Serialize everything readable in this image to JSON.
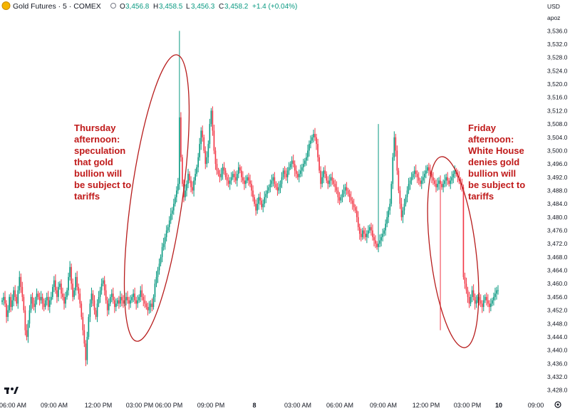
{
  "header": {
    "symbol": "Gold Futures · 5 · COMEX",
    "open_label": "O",
    "open": "3,456.8",
    "high_label": "H",
    "high": "3,458.5",
    "low_label": "L",
    "low": "3,456.3",
    "close_label": "C",
    "close": "3,458.2",
    "change": "+1.4 (+0.04%)"
  },
  "axis": {
    "currency": "USD",
    "unit": "apoz",
    "brand_icon": "tradingview-logo-icon",
    "settings_icon": "gear-icon"
  },
  "annotations": [
    {
      "lines": [
        "Thursday",
        "afternoon:",
        "",
        "speculation",
        "that gold",
        "bullion will",
        "be subject to",
        "tariffs"
      ]
    },
    {
      "lines": [
        "Friday",
        "afternoon:",
        "",
        "White House",
        "denies gold",
        "bullion will",
        "be subject to",
        "tariffs"
      ]
    }
  ],
  "colors": {
    "up": "#089981",
    "down": "#f23645",
    "ellipse": "#b71c1c",
    "text": "#c01a1a",
    "grid": "#f0f3fa"
  },
  "chart_data": {
    "type": "candlestick",
    "title": "Gold Futures · 5 · COMEX",
    "ylim": [
      3426,
      3538
    ],
    "y_ticks": [
      3428,
      3432,
      3436,
      3440,
      3444,
      3448,
      3452,
      3456,
      3460,
      3464,
      3468,
      3472,
      3476,
      3480,
      3484,
      3488,
      3492,
      3496,
      3500,
      3504,
      3508,
      3512,
      3516,
      3520,
      3524,
      3528,
      3532,
      3536
    ],
    "y_tick_labels": [
      "3,428.0",
      "3,432.0",
      "3,436.0",
      "3,440.0",
      "3,444.0",
      "3,448.0",
      "3,452.0",
      "3,456.0",
      "3,460.0",
      "3,464.0",
      "3,468.0",
      "3,472.0",
      "3,476.0",
      "3,480.0",
      "3,484.0",
      "3,488.0",
      "3,492.0",
      "3,496.0",
      "3,500.0",
      "3,504.0",
      "3,508.0",
      "3,512.0",
      "3,516.0",
      "3,520.0",
      "3,524.0",
      "3,528.0",
      "3,532.0",
      "3,536.0"
    ],
    "x_labels": [
      "06:00 AM",
      "09:00 AM",
      "12:00 PM",
      "03:00 PM",
      "06:00 PM",
      "09:00 PM",
      "8",
      "03:00 AM",
      "06:00 AM",
      "09:00 AM",
      "12:00 PM",
      "03:00 PM",
      "10",
      "09:00"
    ],
    "grid": false,
    "series": [
      {
        "values": [
          3455,
          3456,
          3454,
          3450,
          3452,
          3456,
          3453,
          3455,
          3458,
          3456,
          3454,
          3458,
          3462,
          3459,
          3456,
          3452,
          3446,
          3444,
          3448,
          3452,
          3456,
          3454,
          3453,
          3455,
          3457,
          3456,
          3455,
          3456,
          3454,
          3453,
          3455,
          3456,
          3453,
          3455,
          3456,
          3459,
          3461,
          3458,
          3456,
          3459,
          3460,
          3457,
          3456,
          3454,
          3456,
          3458,
          3462,
          3465,
          3460,
          3456,
          3458,
          3462,
          3459,
          3457,
          3454,
          3450,
          3446,
          3442,
          3437,
          3444,
          3450,
          3454,
          3457,
          3455,
          3452,
          3450,
          3454,
          3456,
          3458,
          3460,
          3461,
          3458,
          3455,
          3452,
          3454,
          3456,
          3457,
          3455,
          3453,
          3454,
          3455,
          3454,
          3456,
          3455,
          3454,
          3455,
          3456,
          3455,
          3454,
          3455,
          3456,
          3457,
          3455,
          3454,
          3455,
          3456,
          3458,
          3456,
          3455,
          3454,
          3453,
          3452,
          3453,
          3454,
          3453,
          3456,
          3460,
          3462,
          3464,
          3466,
          3468,
          3471,
          3472,
          3474,
          3476,
          3477,
          3479,
          3481,
          3482,
          3484,
          3486,
          3488,
          3490,
          3510,
          3498,
          3490,
          3486,
          3488,
          3490,
          3493,
          3491,
          3489,
          3488,
          3491,
          3493,
          3495,
          3498,
          3502,
          3506,
          3504,
          3500,
          3496,
          3498,
          3502,
          3508,
          3512,
          3506,
          3500,
          3496,
          3494,
          3493,
          3492,
          3493,
          3495,
          3494,
          3492,
          3491,
          3490,
          3491,
          3492,
          3493,
          3492,
          3491,
          3493,
          3495,
          3494,
          3492,
          3491,
          3490,
          3491,
          3492,
          3491,
          3490,
          3488,
          3486,
          3484,
          3482,
          3484,
          3486,
          3485,
          3483,
          3484,
          3486,
          3487,
          3488,
          3489,
          3490,
          3491,
          3492,
          3490,
          3489,
          3488,
          3489,
          3490,
          3492,
          3494,
          3493,
          3492,
          3494,
          3495,
          3496,
          3497,
          3496,
          3494,
          3493,
          3492,
          3493,
          3494,
          3495,
          3496,
          3497,
          3498,
          3500,
          3502,
          3503,
          3504,
          3505,
          3504,
          3502,
          3498,
          3494,
          3490,
          3492,
          3494,
          3493,
          3491,
          3490,
          3491,
          3492,
          3491,
          3490,
          3489,
          3488,
          3486,
          3485,
          3486,
          3487,
          3488,
          3489,
          3488,
          3487,
          3486,
          3485,
          3484,
          3483,
          3482,
          3480,
          3477,
          3475,
          3474,
          3476,
          3475,
          3474,
          3475,
          3476,
          3477,
          3476,
          3474,
          3473,
          3472,
          3471,
          3472,
          3473,
          3474,
          3475,
          3476,
          3478,
          3480,
          3482,
          3484,
          3490,
          3498,
          3504,
          3500,
          3494,
          3488,
          3484,
          3480,
          3482,
          3484,
          3486,
          3488,
          3490,
          3491,
          3492,
          3493,
          3494,
          3493,
          3492,
          3491,
          3490,
          3491,
          3492,
          3493,
          3494,
          3495,
          3494,
          3493,
          3492,
          3491,
          3490,
          3489,
          3490,
          3491,
          3490,
          3489,
          3490,
          3491,
          3492,
          3491,
          3490,
          3491,
          3492,
          3493,
          3494,
          3493,
          3492,
          3491,
          3490,
          3489,
          3462,
          3460,
          3458,
          3456,
          3454,
          3456,
          3458,
          3456,
          3454,
          3455,
          3456,
          3455,
          3454,
          3453,
          3455,
          3456,
          3455,
          3454,
          3453,
          3454,
          3455,
          3456,
          3457,
          3458,
          3458
        ]
      }
    ]
  }
}
